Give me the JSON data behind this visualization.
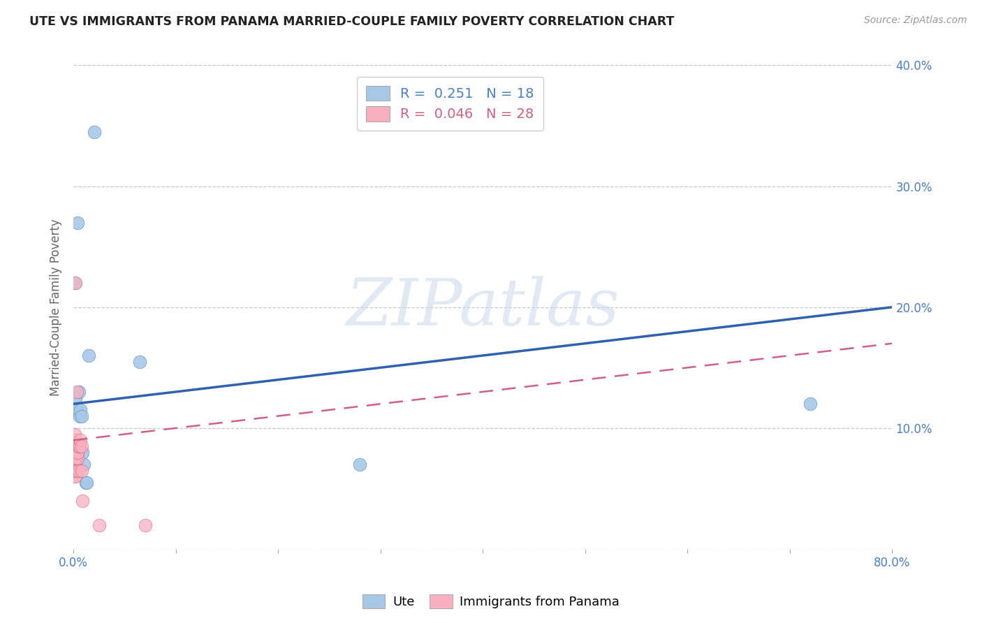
{
  "title": "UTE VS IMMIGRANTS FROM PANAMA MARRIED-COUPLE FAMILY POVERTY CORRELATION CHART",
  "source": "Source: ZipAtlas.com",
  "ylabel": "Married-Couple Family Poverty",
  "xlim": [
    0.0,
    0.8
  ],
  "ylim": [
    0.0,
    0.4
  ],
  "xticks": [
    0.0,
    0.1,
    0.2,
    0.3,
    0.4,
    0.5,
    0.6,
    0.7,
    0.8
  ],
  "xticklabels": [
    "0.0%",
    "",
    "",
    "",
    "",
    "",
    "",
    "",
    "80.0%"
  ],
  "yticks": [
    0.0,
    0.1,
    0.2,
    0.3,
    0.4
  ],
  "yticklabels": [
    "",
    "10.0%",
    "20.0%",
    "30.0%",
    "40.0%"
  ],
  "background_color": "#ffffff",
  "grid_color": "#c8c8c8",
  "watermark_text": "ZIPatlas",
  "ute_color": "#a8c8e8",
  "ute_edge_color": "#6090c0",
  "panama_color": "#f8b0c0",
  "panama_edge_color": "#d06080",
  "ute_label": "Ute",
  "panama_label": "Immigrants from Panama",
  "ute_R": "0.251",
  "ute_N": "18",
  "panama_R": "0.046",
  "panama_N": "28",
  "ute_line_color": "#3060b0",
  "panama_line_color": "#d06080",
  "ute_x": [
    0.001,
    0.001,
    0.002,
    0.003,
    0.004,
    0.005,
    0.006,
    0.007,
    0.008,
    0.009,
    0.01,
    0.012,
    0.013,
    0.015,
    0.02,
    0.065,
    0.28,
    0.72
  ],
  "ute_y": [
    0.115,
    0.22,
    0.125,
    0.115,
    0.27,
    0.13,
    0.11,
    0.115,
    0.11,
    0.08,
    0.07,
    0.055,
    0.055,
    0.16,
    0.345,
    0.155,
    0.07,
    0.12
  ],
  "panama_x": [
    0.001,
    0.001,
    0.001,
    0.001,
    0.001,
    0.001,
    0.001,
    0.001,
    0.002,
    0.002,
    0.002,
    0.002,
    0.002,
    0.003,
    0.003,
    0.003,
    0.003,
    0.004,
    0.004,
    0.005,
    0.005,
    0.006,
    0.007,
    0.008,
    0.008,
    0.009,
    0.025,
    0.07
  ],
  "panama_y": [
    0.06,
    0.065,
    0.07,
    0.075,
    0.08,
    0.085,
    0.09,
    0.095,
    0.06,
    0.065,
    0.07,
    0.075,
    0.22,
    0.065,
    0.08,
    0.085,
    0.13,
    0.075,
    0.08,
    0.065,
    0.085,
    0.085,
    0.09,
    0.085,
    0.065,
    0.04,
    0.02,
    0.02
  ]
}
